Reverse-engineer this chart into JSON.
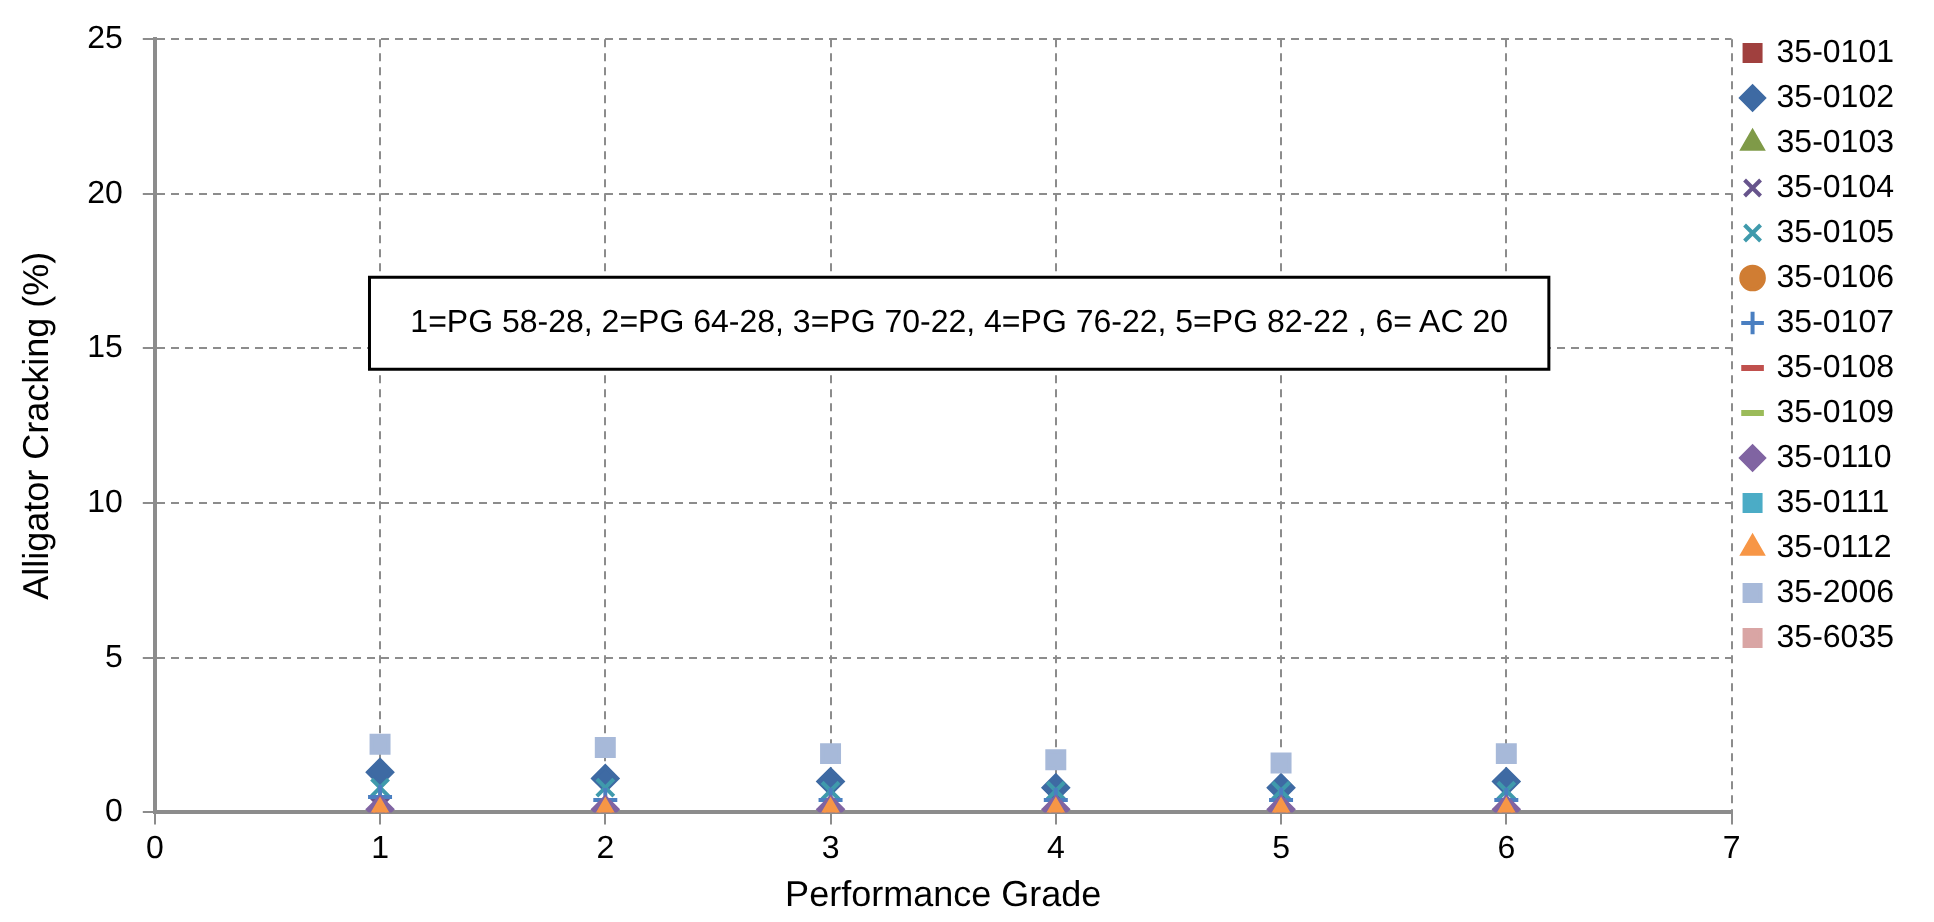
{
  "chart_data": {
    "type": "scatter",
    "xlabel": "Performance Grade",
    "ylabel": "Alligator Cracking (%)",
    "x": [
      1,
      2,
      3,
      4,
      5,
      6
    ],
    "xlim": [
      0,
      7
    ],
    "xticks": [
      0,
      1,
      2,
      3,
      4,
      5,
      6,
      7
    ],
    "ylim": [
      0,
      25
    ],
    "yticks": [
      0,
      5,
      10,
      15,
      20,
      25
    ],
    "grid": true,
    "legend": "right",
    "line_style": "dashed",
    "annotations": [
      "1=PG 58-28, 2=PG 64-28, 3=PG 70-22, 4=PG 76-22, 5=PG 82-22 , 6= AC 20"
    ],
    "series": [
      {
        "name": "35-0101",
        "color": "#a0403e",
        "marker": "square",
        "values": [
          null,
          null,
          null,
          null,
          null,
          null
        ]
      },
      {
        "name": "35-0102",
        "color": "#3e6aa3",
        "marker": "diamond",
        "values": [
          1.3,
          1.1,
          1.0,
          0.8,
          0.8,
          1.0
        ]
      },
      {
        "name": "35-0103",
        "color": "#7f9a48",
        "marker": "triangle",
        "values": [
          null,
          null,
          null,
          null,
          null,
          null
        ]
      },
      {
        "name": "35-0104",
        "color": "#67548c",
        "marker": "cross",
        "values": [
          0.2,
          null,
          null,
          null,
          null,
          null
        ]
      },
      {
        "name": "35-0105",
        "color": "#3f9aac",
        "marker": "cross",
        "values": [
          0.8,
          0.8,
          0.7,
          0.7,
          0.7,
          0.7
        ]
      },
      {
        "name": "35-0106",
        "color": "#d07d33",
        "marker": "circle",
        "values": [
          null,
          null,
          null,
          null,
          null,
          null
        ]
      },
      {
        "name": "35-0107",
        "color": "#4a7fc1",
        "marker": "plus",
        "values": [
          0.5,
          0.4,
          0.4,
          0.4,
          0.4,
          0.4
        ]
      },
      {
        "name": "35-0108",
        "color": "#c0504d",
        "marker": "dash",
        "values": [
          null,
          null,
          null,
          null,
          null,
          null
        ]
      },
      {
        "name": "35-0109",
        "color": "#9bbb59",
        "marker": "dash",
        "values": [
          null,
          null,
          null,
          null,
          null,
          null
        ]
      },
      {
        "name": "35-0110",
        "color": "#8064a2",
        "marker": "diamond",
        "values": [
          0.1,
          0.1,
          0.1,
          0.1,
          0.1,
          0.1
        ]
      },
      {
        "name": "35-0111",
        "color": "#4bacc6",
        "marker": "square",
        "values": [
          null,
          null,
          null,
          null,
          null,
          null
        ]
      },
      {
        "name": "35-0112",
        "color": "#f79646",
        "marker": "triangle",
        "values": [
          0,
          0,
          0,
          0,
          0,
          0
        ]
      },
      {
        "name": "35-2006",
        "color": "#a7b9d9",
        "marker": "square",
        "values": [
          2.2,
          2.1,
          1.9,
          1.7,
          1.6,
          1.9
        ]
      },
      {
        "name": "35-6035",
        "color": "#d9a5a4",
        "marker": "square",
        "values": [
          null,
          null,
          null,
          null,
          null,
          null
        ]
      }
    ]
  }
}
